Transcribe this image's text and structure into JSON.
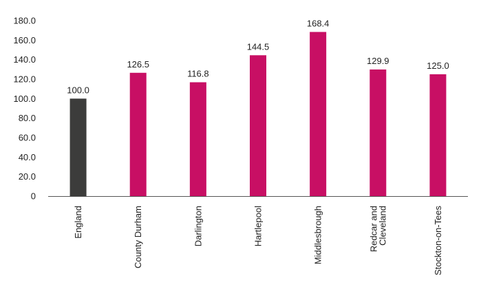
{
  "chart_data": {
    "type": "bar",
    "title": "",
    "xlabel": "",
    "ylabel": "",
    "ylim": [
      0,
      180
    ],
    "yticks": [
      0,
      20,
      40,
      60,
      80,
      100,
      120,
      140,
      160,
      180
    ],
    "ytick_labels": [
      "0",
      "20.0",
      "40.0",
      "60.0",
      "80.0",
      "100.0",
      "120.0",
      "140.0",
      "160.0",
      "180.0"
    ],
    "grid": false,
    "legend": "none",
    "categories": [
      [
        "England"
      ],
      [
        "County Durham"
      ],
      [
        "Darlington"
      ],
      [
        "Hartlepool"
      ],
      [
        "Middlesbrough"
      ],
      [
        "Redcar and",
        "Cleveland"
      ],
      [
        "Stockton-on-Tees"
      ]
    ],
    "values": [
      100.0,
      126.5,
      116.8,
      144.5,
      168.4,
      129.9,
      125.0
    ],
    "value_labels": [
      "100.0",
      "126.5",
      "116.8",
      "144.5",
      "168.4",
      "129.9",
      "125.0"
    ],
    "colors": [
      "#3c3c3b",
      "#c80f64",
      "#c80f64",
      "#c80f64",
      "#c80f64",
      "#c80f64",
      "#c80f64"
    ]
  }
}
